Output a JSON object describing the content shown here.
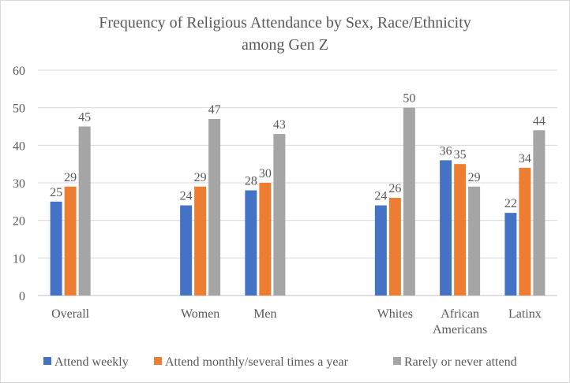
{
  "chart_data": {
    "type": "bar",
    "title": [
      "Frequency of Religious Attendance by Sex, Race/Ethnicity",
      "among Gen Z"
    ],
    "groups": [
      {
        "label": [
          "Overall"
        ],
        "values": [
          25,
          29,
          45
        ]
      },
      {
        "label": [
          "Women"
        ],
        "values": [
          24,
          29,
          47
        ]
      },
      {
        "label": [
          "Men"
        ],
        "values": [
          28,
          30,
          43
        ]
      },
      {
        "label": [
          "Whites"
        ],
        "values": [
          24,
          26,
          50
        ]
      },
      {
        "label": [
          "African",
          "Americans"
        ],
        "values": [
          36,
          35,
          29
        ]
      },
      {
        "label": [
          "Latinx"
        ],
        "values": [
          22,
          34,
          44
        ]
      }
    ],
    "series": [
      {
        "name": "Attend weekly",
        "color": "#4472c4"
      },
      {
        "name": "Attend monthly/several times a year",
        "color": "#ed7d31"
      },
      {
        "name": "Rarely or never attend",
        "color": "#a5a5a5"
      }
    ],
    "ylim": [
      0,
      60
    ],
    "yticks": [
      0,
      10,
      20,
      30,
      40,
      50,
      60
    ],
    "xlabel": "",
    "ylabel": "",
    "grid": true,
    "legend": "bottom"
  }
}
